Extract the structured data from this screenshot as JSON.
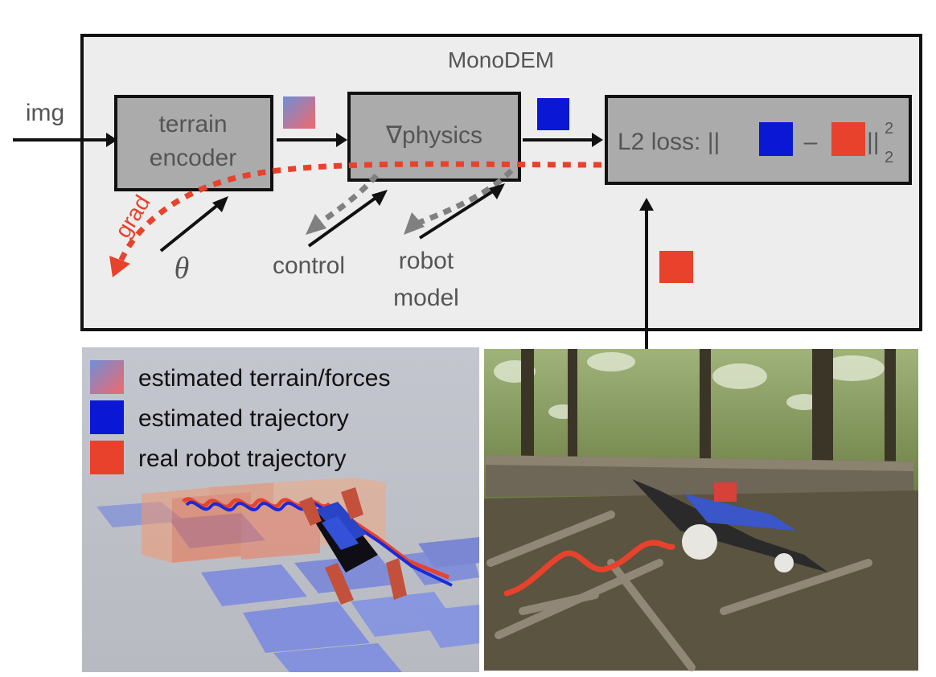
{
  "diagram": {
    "title": "MonoDEM",
    "input_label": "img",
    "nodes": {
      "encoder": [
        "terrain",
        "encoder"
      ],
      "physics": "∇physics",
      "loss_prefix": "L2 loss: ||",
      "loss_minus": "–",
      "loss_suffix": "||",
      "loss_sup": "2",
      "loss_sub": "2"
    },
    "grad_label": "grad",
    "theta_label": "θ",
    "control_label": "control",
    "robot_model_label": [
      "robot",
      "model"
    ]
  },
  "legend": {
    "items": [
      "estimated terrain/forces",
      "estimated trajectory",
      "real robot trajectory"
    ]
  },
  "colors": {
    "box_fill": "#ababab",
    "container_fill": "#ededed",
    "estimated_trajectory": "#0a18d6",
    "real_trajectory": "#e8422c",
    "terrain_gradient_start": "#7b8fd6",
    "terrain_gradient_end": "#f26d6d",
    "grad_arrow": "#e8422c",
    "dotted_gray": "#808080",
    "sim_background": "#c6c7cc",
    "forest_background": "#5d6b3a"
  },
  "icons": [
    "estimated-terrain-swatch",
    "estimated-trajectory-swatch",
    "real-trajectory-swatch",
    "robot-photo",
    "simulation-render"
  ]
}
